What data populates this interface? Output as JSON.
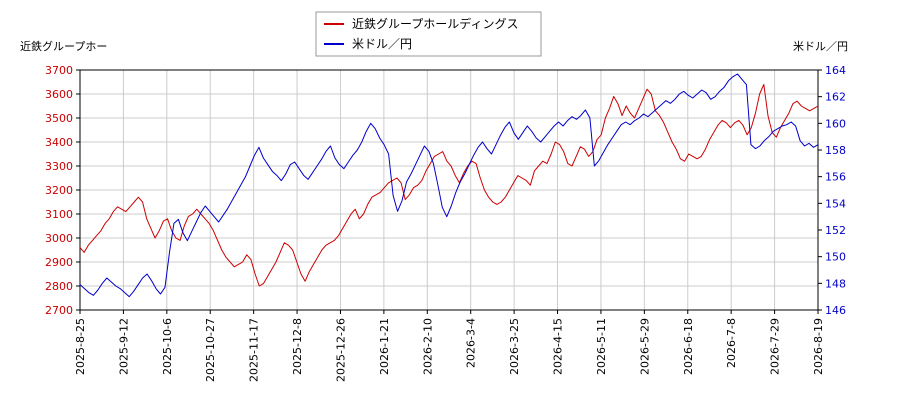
{
  "chart_data": {
    "type": "line",
    "left_axis_label": "近鉄グループホー",
    "right_axis_label": "米ドル／円",
    "legend": {
      "placement": "top-center",
      "entries": [
        {
          "label": "近鉄グループホールディングス",
          "color": "#cc0000"
        },
        {
          "label": "米ドル／円",
          "color": "#0000cc"
        }
      ]
    },
    "x_tick_labels": [
      "2025-8-25",
      "2025-9-12",
      "2025-10-6",
      "2025-10-27",
      "2025-11-17",
      "2025-12-8",
      "2025-12-26",
      "2026-1-21",
      "2026-2-10",
      "2026-3-4",
      "2026-3-25",
      "2026-4-15",
      "2026-5-11",
      "2026-5-29",
      "2026-6-18",
      "2026-7-8",
      "2026-7-29",
      "2026-8-19"
    ],
    "ylim_left": [
      2700,
      3700
    ],
    "yticks_left": [
      2700,
      2800,
      2900,
      3000,
      3100,
      3200,
      3300,
      3400,
      3500,
      3600,
      3700
    ],
    "ylim_right": [
      146,
      164
    ],
    "yticks_right": [
      146,
      148,
      150,
      152,
      154,
      156,
      158,
      160,
      162,
      164
    ],
    "grid": true,
    "series": [
      {
        "name": "近鉄グループホールディングス",
        "axis": "left",
        "color": "#cc0000",
        "values": [
          2960,
          2940,
          2970,
          2990,
          3010,
          3030,
          3060,
          3080,
          3110,
          3130,
          3120,
          3110,
          3130,
          3150,
          3170,
          3150,
          3080,
          3040,
          3000,
          3030,
          3070,
          3080,
          3030,
          3000,
          2990,
          3050,
          3090,
          3100,
          3120,
          3100,
          3080,
          3060,
          3030,
          2990,
          2950,
          2920,
          2900,
          2880,
          2890,
          2900,
          2930,
          2910,
          2850,
          2800,
          2810,
          2840,
          2870,
          2900,
          2940,
          2980,
          2970,
          2950,
          2900,
          2850,
          2820,
          2860,
          2890,
          2920,
          2950,
          2970,
          2980,
          2990,
          3010,
          3040,
          3070,
          3100,
          3120,
          3080,
          3100,
          3140,
          3170,
          3180,
          3190,
          3210,
          3230,
          3240,
          3250,
          3230,
          3160,
          3180,
          3210,
          3220,
          3240,
          3280,
          3310,
          3340,
          3350,
          3360,
          3320,
          3300,
          3260,
          3230,
          3270,
          3300,
          3320,
          3310,
          3250,
          3200,
          3170,
          3150,
          3140,
          3150,
          3170,
          3200,
          3230,
          3260,
          3250,
          3240,
          3220,
          3280,
          3300,
          3320,
          3310,
          3350,
          3400,
          3390,
          3360,
          3310,
          3300,
          3340,
          3380,
          3370,
          3340,
          3360,
          3410,
          3430,
          3500,
          3540,
          3590,
          3560,
          3510,
          3550,
          3520,
          3500,
          3540,
          3580,
          3620,
          3600,
          3530,
          3510,
          3480,
          3440,
          3400,
          3370,
          3330,
          3320,
          3350,
          3340,
          3330,
          3340,
          3370,
          3410,
          3440,
          3470,
          3490,
          3480,
          3460,
          3480,
          3490,
          3470,
          3430,
          3460,
          3520,
          3600,
          3640,
          3510,
          3440,
          3420,
          3460,
          3490,
          3520,
          3560,
          3570,
          3550,
          3540,
          3530,
          3540,
          3550
        ]
      },
      {
        "name": "米ドル／円",
        "axis": "right",
        "color": "#0000cc",
        "values": [
          147.9,
          147.6,
          147.3,
          147.1,
          147.5,
          148.0,
          148.4,
          148.1,
          147.8,
          147.6,
          147.3,
          147.0,
          147.4,
          147.9,
          148.4,
          148.7,
          148.2,
          147.6,
          147.2,
          147.7,
          150.3,
          152.5,
          152.8,
          151.8,
          151.2,
          151.9,
          152.6,
          153.3,
          153.8,
          153.4,
          153.0,
          152.6,
          153.1,
          153.6,
          154.2,
          154.8,
          155.4,
          156.0,
          156.8,
          157.6,
          158.2,
          157.4,
          156.9,
          156.4,
          156.1,
          155.7,
          156.2,
          156.9,
          157.1,
          156.6,
          156.1,
          155.8,
          156.3,
          156.8,
          157.3,
          157.9,
          158.3,
          157.4,
          156.9,
          156.6,
          157.1,
          157.6,
          158.0,
          158.6,
          159.4,
          160.0,
          159.6,
          158.9,
          158.4,
          157.7,
          154.6,
          153.4,
          154.2,
          155.6,
          156.2,
          156.9,
          157.6,
          158.3,
          157.9,
          157.0,
          155.4,
          153.7,
          153.0,
          153.8,
          154.8,
          155.6,
          156.2,
          156.9,
          157.6,
          158.2,
          158.6,
          158.1,
          157.7,
          158.4,
          159.1,
          159.7,
          160.1,
          159.3,
          158.8,
          159.3,
          159.8,
          159.4,
          158.9,
          158.6,
          159.0,
          159.4,
          159.8,
          160.1,
          159.8,
          160.2,
          160.5,
          160.3,
          160.6,
          161.0,
          160.4,
          156.8,
          157.2,
          157.8,
          158.4,
          158.9,
          159.4,
          159.9,
          160.1,
          159.9,
          160.2,
          160.4,
          160.7,
          160.5,
          160.8,
          161.1,
          161.4,
          161.7,
          161.5,
          161.8,
          162.2,
          162.4,
          162.1,
          161.9,
          162.2,
          162.5,
          162.3,
          161.8,
          162.0,
          162.4,
          162.7,
          163.2,
          163.5,
          163.7,
          163.3,
          162.9,
          158.4,
          158.1,
          158.3,
          158.7,
          159.0,
          159.4,
          159.6,
          159.8,
          159.9,
          160.1,
          159.8,
          158.7,
          158.3,
          158.5,
          158.2,
          158.4
        ]
      }
    ]
  }
}
